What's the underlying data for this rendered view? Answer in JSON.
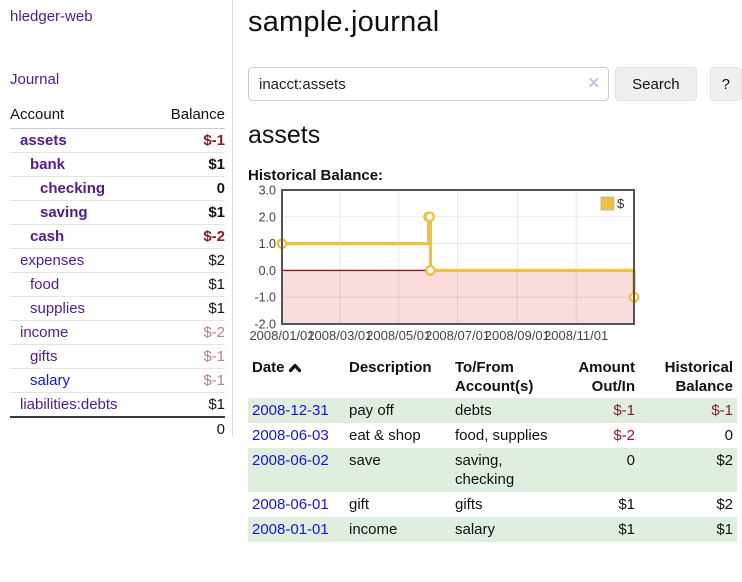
{
  "sidebar": {
    "brand": "hledger-web",
    "journal_label": "Journal",
    "headers": [
      "Account",
      "Balance"
    ],
    "accounts": [
      {
        "name": "assets",
        "indent": 1,
        "bold": true,
        "balance": "$-1",
        "balance_style": "neg"
      },
      {
        "name": "bank",
        "indent": 2,
        "bold": true,
        "balance": "$1",
        "balance_style": ""
      },
      {
        "name": "checking",
        "indent": 3,
        "bold": true,
        "balance": "0",
        "balance_style": ""
      },
      {
        "name": "saving",
        "indent": 3,
        "bold": true,
        "balance": "$1",
        "balance_style": ""
      },
      {
        "name": "cash",
        "indent": 2,
        "bold": true,
        "balance": "$-2",
        "balance_style": "neg"
      },
      {
        "name": "expenses",
        "indent": 1,
        "bold": false,
        "balance": "$2",
        "balance_style": ""
      },
      {
        "name": "food",
        "indent": 2,
        "bold": false,
        "balance": "$1",
        "balance_style": ""
      },
      {
        "name": "supplies",
        "indent": 2,
        "bold": false,
        "balance": "$1",
        "balance_style": ""
      },
      {
        "name": "income",
        "indent": 1,
        "bold": false,
        "balance": "$-2",
        "balance_style": "negsoft"
      },
      {
        "name": "gifts",
        "indent": 2,
        "bold": false,
        "balance": "$-1",
        "balance_style": "negsoft"
      },
      {
        "name": "salary",
        "indent": 2,
        "bold": false,
        "balance": "$-1",
        "balance_style": "negsoft",
        "link_color": "blue"
      },
      {
        "name": "liabilities:debts",
        "indent": 1,
        "bold": false,
        "balance": "$1",
        "balance_style": ""
      }
    ],
    "total": "0"
  },
  "main": {
    "title": "sample.journal",
    "account_heading": "assets"
  },
  "search": {
    "value": "inacct:assets",
    "clear_icon": "✕",
    "button_label": "Search",
    "help_label": "?"
  },
  "chart_data": {
    "type": "line",
    "title": "Historical Balance:",
    "legend": "$",
    "legend_position": "top-right",
    "grid": true,
    "ylim": [
      -2,
      3
    ],
    "y_ticks": [
      "3.0",
      "2.0",
      "1.0",
      "0.0",
      "-1.0",
      "-2.0"
    ],
    "x_range": [
      "2008-01-01",
      "2008-12-31"
    ],
    "x_ticks": [
      "2008/01/01",
      "2008/03/01",
      "2008/05/01",
      "2008/07/01",
      "2008/09/01",
      "2008/11/01"
    ],
    "series": [
      {
        "name": "$",
        "color": "#edc240",
        "step": true,
        "points": [
          [
            "2008-01-01",
            1
          ],
          [
            "2008-06-01",
            2
          ],
          [
            "2008-06-02",
            2
          ],
          [
            "2008-06-03",
            0
          ],
          [
            "2008-12-31",
            -1
          ]
        ]
      }
    ],
    "negative_fill": "#fbdcdc",
    "zero_line_color": "#941616",
    "border_color": "#545454"
  },
  "register": {
    "headers": [
      "Date",
      "Description",
      "To/From Account(s)",
      "Amount Out/In",
      "Historical Balance"
    ],
    "sort_icon": "chevron-up",
    "rows": [
      {
        "date": "2008-12-31",
        "description": "pay off",
        "accounts": "debts",
        "amount": "$-1",
        "amount_negative": true,
        "balance": "$-1",
        "balance_negative": true
      },
      {
        "date": "2008-06-03",
        "description": "eat & shop",
        "accounts": "food, supplies",
        "amount": "$-2",
        "amount_negative": true,
        "balance": "0",
        "balance_negative": false
      },
      {
        "date": "2008-06-02",
        "description": "save",
        "accounts": "saving, checking",
        "amount": "0",
        "amount_negative": false,
        "balance": "$2",
        "balance_negative": false
      },
      {
        "date": "2008-06-01",
        "description": "gift",
        "accounts": "gifts",
        "amount": "$1",
        "amount_negative": false,
        "balance": "$2",
        "balance_negative": false
      },
      {
        "date": "2008-01-01",
        "description": "income",
        "accounts": "salary",
        "amount": "$1",
        "amount_negative": false,
        "balance": "$1",
        "balance_negative": false
      }
    ]
  }
}
